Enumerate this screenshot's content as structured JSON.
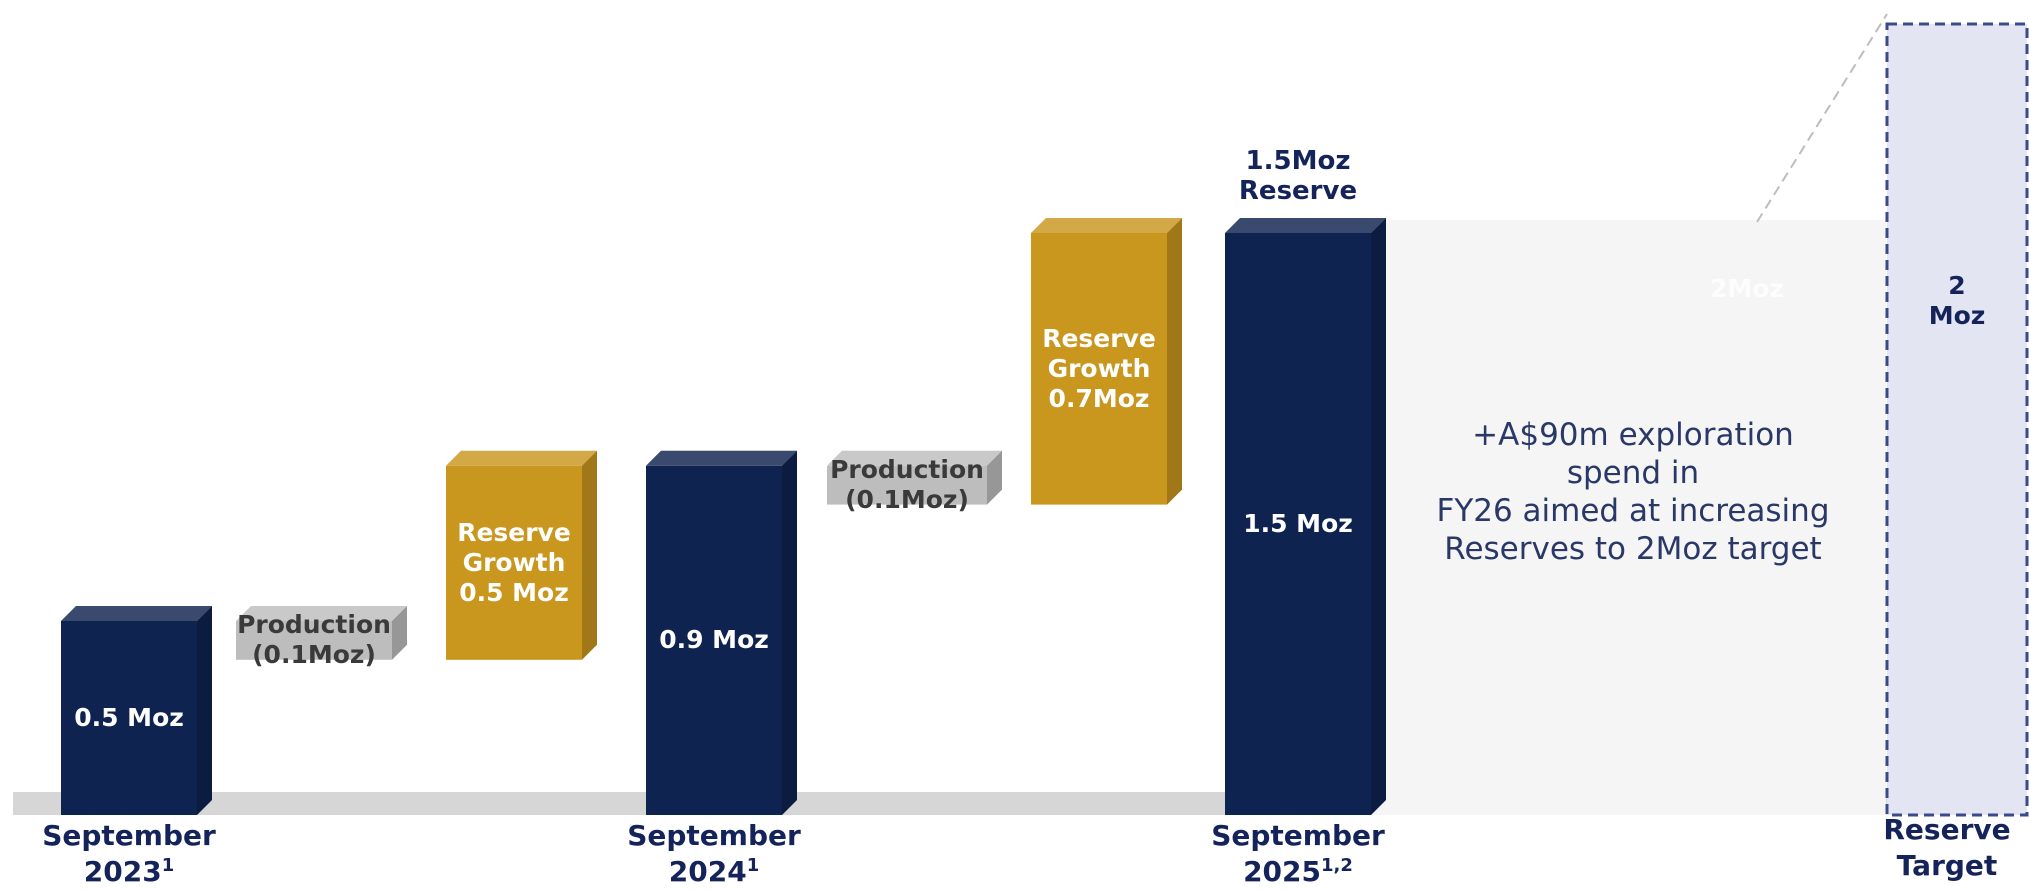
{
  "chart_data": {
    "type": "waterfall",
    "categories": [
      "September\n2023",
      null,
      null,
      "September\n2024",
      null,
      null,
      "September\n2025",
      "Reserve\nTarget"
    ],
    "footnote_marks": [
      "1",
      null,
      null,
      "1",
      null,
      null,
      "1,2",
      null
    ],
    "values": [
      0.5,
      -0.1,
      0.5,
      0.9,
      -0.1,
      0.7,
      1.5,
      2
    ],
    "value_labels": [
      "0.5 Moz",
      "Production\n(0.1Moz)",
      "Reserve\nGrowth\n0.5 Moz",
      "0.9 Moz",
      "Production\n(0.1Moz)",
      "Reserve\nGrowth\n0.7Moz",
      "1.5 Moz",
      "2 Moz"
    ],
    "colors": [
      "#0f2350",
      "#bdbdbd",
      "#c9961e",
      "#0f2350",
      "#bdbdbd",
      "#c9961e",
      "#0f2350",
      "#e4e5f3"
    ],
    "label_colors": [
      "#ffffff",
      "#3a3a3a",
      "#ffffff",
      "#ffffff",
      "#3a3a3a",
      "#ffffff",
      "#ffffff",
      "#14245a"
    ],
    "annotations": [
      "1.5Moz\nReserve",
      "+A$90m exploration spend in\nFY26 aimed at increasing\nReserves to 2Moz target",
      "2Moz"
    ]
  }
}
